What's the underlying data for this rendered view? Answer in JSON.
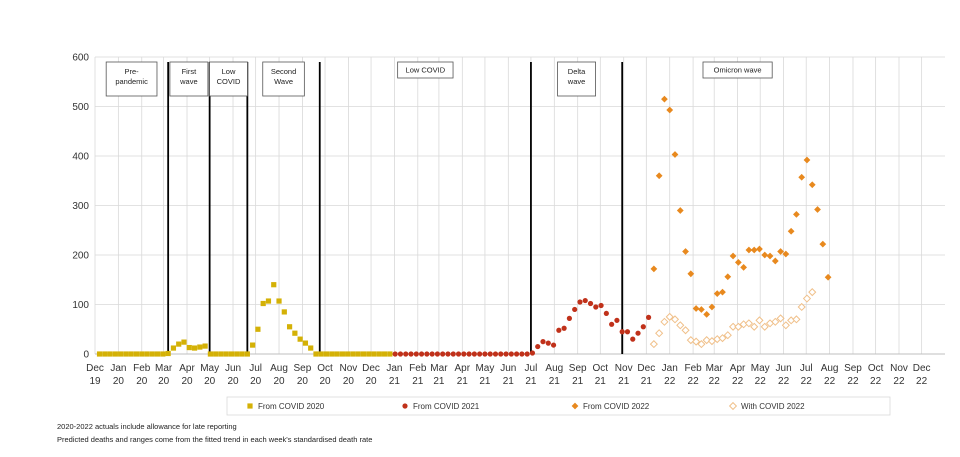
{
  "chart_data": {
    "type": "scatter",
    "title": "",
    "xlabel": "",
    "ylabel": "",
    "ylim": [
      0,
      600
    ],
    "yticks": [
      0,
      100,
      200,
      300,
      400,
      500,
      600
    ],
    "xlim": [
      "2019-12-01",
      "2023-01-01"
    ],
    "x_tick_labels": [
      [
        "Dec",
        "19"
      ],
      [
        "Jan",
        "20"
      ],
      [
        "Feb",
        "20"
      ],
      [
        "Mar",
        "20"
      ],
      [
        "Apr",
        "20"
      ],
      [
        "May",
        "20"
      ],
      [
        "Jun",
        "20"
      ],
      [
        "Jul",
        "20"
      ],
      [
        "Aug",
        "20"
      ],
      [
        "Sep",
        "20"
      ],
      [
        "Oct",
        "20"
      ],
      [
        "Nov",
        "20"
      ],
      [
        "Dec",
        "20"
      ],
      [
        "Jan",
        "21"
      ],
      [
        "Feb",
        "21"
      ],
      [
        "Mar",
        "21"
      ],
      [
        "Apr",
        "21"
      ],
      [
        "May",
        "21"
      ],
      [
        "Jun",
        "21"
      ],
      [
        "Jul",
        "21"
      ],
      [
        "Aug",
        "21"
      ],
      [
        "Sep",
        "21"
      ],
      [
        "Oct",
        "21"
      ],
      [
        "Nov",
        "21"
      ],
      [
        "Dec",
        "21"
      ],
      [
        "Jan",
        "22"
      ],
      [
        "Feb",
        "22"
      ],
      [
        "Mar",
        "22"
      ],
      [
        "Apr",
        "22"
      ],
      [
        "May",
        "22"
      ],
      [
        "Jun",
        "22"
      ],
      [
        "Jul",
        "22"
      ],
      [
        "Aug",
        "22"
      ],
      [
        "Sep",
        "22"
      ],
      [
        "Oct",
        "22"
      ],
      [
        "Nov",
        "22"
      ],
      [
        "Dec",
        "22"
      ]
    ],
    "grid": true,
    "legend_position": "bottom",
    "waves": [
      {
        "label": [
          "Pre-",
          "pandemic"
        ],
        "start": "2019-12-01",
        "end": "2020-03-07"
      },
      {
        "label": [
          "First",
          "wave"
        ],
        "start": "2020-03-07",
        "end": "2020-05-01"
      },
      {
        "label": [
          "Low",
          "COVID"
        ],
        "start": "2020-05-01",
        "end": "2020-06-20"
      },
      {
        "label": [
          "Second",
          "Wave"
        ],
        "start": "2020-06-20",
        "end": "2020-09-24"
      },
      {
        "label": [
          "Low COVID"
        ],
        "start": "2020-09-24",
        "end": "2021-07-01"
      },
      {
        "label": [
          "Delta",
          "wave"
        ],
        "start": "2021-07-01",
        "end": "2021-10-30"
      },
      {
        "label": [
          "Omicron wave"
        ],
        "start": "2021-10-30",
        "end": "2022-09-01"
      }
    ],
    "wave_boundaries": [
      "2020-03-07",
      "2020-05-01",
      "2020-06-20",
      "2020-09-24",
      "2021-07-01",
      "2021-10-30"
    ],
    "series": [
      {
        "name": "From COVID 2020",
        "marker": "square",
        "color": "#d4b106",
        "filled": true,
        "points": [
          [
            "2019-12-07",
            0
          ],
          [
            "2019-12-14",
            0
          ],
          [
            "2019-12-21",
            0
          ],
          [
            "2019-12-28",
            0
          ],
          [
            "2020-01-04",
            0
          ],
          [
            "2020-01-11",
            0
          ],
          [
            "2020-01-18",
            0
          ],
          [
            "2020-01-25",
            0
          ],
          [
            "2020-02-01",
            0
          ],
          [
            "2020-02-08",
            0
          ],
          [
            "2020-02-15",
            0
          ],
          [
            "2020-02-22",
            0
          ],
          [
            "2020-02-29",
            0
          ],
          [
            "2020-03-07",
            1
          ],
          [
            "2020-03-14",
            12
          ],
          [
            "2020-03-21",
            20
          ],
          [
            "2020-03-28",
            24
          ],
          [
            "2020-04-04",
            13
          ],
          [
            "2020-04-11",
            12
          ],
          [
            "2020-04-18",
            14
          ],
          [
            "2020-04-25",
            16
          ],
          [
            "2020-05-02",
            0
          ],
          [
            "2020-05-09",
            0
          ],
          [
            "2020-05-16",
            0
          ],
          [
            "2020-05-23",
            0
          ],
          [
            "2020-05-30",
            0
          ],
          [
            "2020-06-06",
            0
          ],
          [
            "2020-06-13",
            0
          ],
          [
            "2020-06-20",
            0
          ],
          [
            "2020-06-27",
            18
          ],
          [
            "2020-07-04",
            50
          ],
          [
            "2020-07-11",
            102
          ],
          [
            "2020-07-18",
            107
          ],
          [
            "2020-07-25",
            140
          ],
          [
            "2020-08-01",
            107
          ],
          [
            "2020-08-08",
            85
          ],
          [
            "2020-08-15",
            55
          ],
          [
            "2020-08-22",
            42
          ],
          [
            "2020-08-29",
            30
          ],
          [
            "2020-09-05",
            22
          ],
          [
            "2020-09-12",
            12
          ],
          [
            "2020-09-19",
            0
          ],
          [
            "2020-09-26",
            0
          ],
          [
            "2020-10-03",
            0
          ],
          [
            "2020-10-10",
            0
          ],
          [
            "2020-10-17",
            0
          ],
          [
            "2020-10-24",
            0
          ],
          [
            "2020-10-31",
            0
          ],
          [
            "2020-11-07",
            0
          ],
          [
            "2020-11-14",
            0
          ],
          [
            "2020-11-21",
            0
          ],
          [
            "2020-11-28",
            0
          ],
          [
            "2020-12-05",
            0
          ],
          [
            "2020-12-12",
            0
          ],
          [
            "2020-12-19",
            0
          ],
          [
            "2020-12-26",
            0
          ]
        ]
      },
      {
        "name": "From COVID 2021",
        "marker": "circle",
        "color": "#c0311a",
        "filled": true,
        "points": [
          [
            "2021-01-02",
            0
          ],
          [
            "2021-01-09",
            0
          ],
          [
            "2021-01-16",
            0
          ],
          [
            "2021-01-23",
            0
          ],
          [
            "2021-01-30",
            0
          ],
          [
            "2021-02-06",
            0
          ],
          [
            "2021-02-13",
            0
          ],
          [
            "2021-02-20",
            0
          ],
          [
            "2021-02-27",
            0
          ],
          [
            "2021-03-06",
            0
          ],
          [
            "2021-03-13",
            0
          ],
          [
            "2021-03-20",
            0
          ],
          [
            "2021-03-27",
            0
          ],
          [
            "2021-04-03",
            0
          ],
          [
            "2021-04-10",
            0
          ],
          [
            "2021-04-17",
            0
          ],
          [
            "2021-04-24",
            0
          ],
          [
            "2021-05-01",
            0
          ],
          [
            "2021-05-08",
            0
          ],
          [
            "2021-05-15",
            0
          ],
          [
            "2021-05-22",
            0
          ],
          [
            "2021-05-29",
            0
          ],
          [
            "2021-06-05",
            0
          ],
          [
            "2021-06-12",
            0
          ],
          [
            "2021-06-19",
            0
          ],
          [
            "2021-06-26",
            0
          ],
          [
            "2021-07-03",
            2
          ],
          [
            "2021-07-10",
            15
          ],
          [
            "2021-07-17",
            25
          ],
          [
            "2021-07-24",
            22
          ],
          [
            "2021-07-31",
            18
          ],
          [
            "2021-08-07",
            48
          ],
          [
            "2021-08-14",
            52
          ],
          [
            "2021-08-21",
            72
          ],
          [
            "2021-08-28",
            90
          ],
          [
            "2021-09-04",
            105
          ],
          [
            "2021-09-11",
            108
          ],
          [
            "2021-09-18",
            102
          ],
          [
            "2021-09-25",
            95
          ],
          [
            "2021-10-02",
            98
          ],
          [
            "2021-10-09",
            82
          ],
          [
            "2021-10-16",
            60
          ],
          [
            "2021-10-23",
            68
          ],
          [
            "2021-10-30",
            45
          ],
          [
            "2021-11-06",
            45
          ],
          [
            "2021-11-13",
            30
          ],
          [
            "2021-11-20",
            42
          ],
          [
            "2021-11-27",
            55
          ],
          [
            "2021-12-04",
            74
          ]
        ]
      },
      {
        "name": "From COVID 2022",
        "marker": "diamond",
        "color": "#e8891e",
        "filled": true,
        "points": [
          [
            "2021-12-11",
            172
          ],
          [
            "2021-12-18",
            360
          ],
          [
            "2021-12-25",
            515
          ],
          [
            "2022-01-01",
            493
          ],
          [
            "2022-01-08",
            403
          ],
          [
            "2022-01-15",
            290
          ],
          [
            "2022-01-22",
            207
          ],
          [
            "2022-01-29",
            162
          ],
          [
            "2022-02-05",
            92
          ],
          [
            "2022-02-12",
            90
          ],
          [
            "2022-02-19",
            80
          ],
          [
            "2022-02-26",
            95
          ],
          [
            "2022-03-05",
            122
          ],
          [
            "2022-03-12",
            125
          ],
          [
            "2022-03-19",
            156
          ],
          [
            "2022-03-26",
            198
          ],
          [
            "2022-04-02",
            185
          ],
          [
            "2022-04-09",
            175
          ],
          [
            "2022-04-16",
            210
          ],
          [
            "2022-04-23",
            210
          ],
          [
            "2022-04-30",
            212
          ],
          [
            "2022-05-07",
            200
          ],
          [
            "2022-05-14",
            198
          ],
          [
            "2022-05-21",
            188
          ],
          [
            "2022-05-28",
            207
          ],
          [
            "2022-06-04",
            202
          ],
          [
            "2022-06-11",
            248
          ],
          [
            "2022-06-18",
            282
          ],
          [
            "2022-06-25",
            357
          ],
          [
            "2022-07-02",
            392
          ],
          [
            "2022-07-09",
            342
          ],
          [
            "2022-07-16",
            292
          ],
          [
            "2022-07-23",
            222
          ],
          [
            "2022-07-30",
            155
          ]
        ]
      },
      {
        "name": "With COVID 2022",
        "marker": "diamond",
        "color": "#f0c08a",
        "filled": false,
        "points": [
          [
            "2021-12-11",
            20
          ],
          [
            "2021-12-18",
            42
          ],
          [
            "2021-12-25",
            65
          ],
          [
            "2022-01-01",
            75
          ],
          [
            "2022-01-08",
            70
          ],
          [
            "2022-01-15",
            58
          ],
          [
            "2022-01-22",
            48
          ],
          [
            "2022-01-29",
            28
          ],
          [
            "2022-02-05",
            25
          ],
          [
            "2022-02-12",
            20
          ],
          [
            "2022-02-19",
            28
          ],
          [
            "2022-02-26",
            26
          ],
          [
            "2022-03-05",
            30
          ],
          [
            "2022-03-12",
            32
          ],
          [
            "2022-03-19",
            38
          ],
          [
            "2022-03-26",
            55
          ],
          [
            "2022-04-02",
            55
          ],
          [
            "2022-04-09",
            60
          ],
          [
            "2022-04-16",
            62
          ],
          [
            "2022-04-23",
            55
          ],
          [
            "2022-04-30",
            68
          ],
          [
            "2022-05-07",
            55
          ],
          [
            "2022-05-14",
            62
          ],
          [
            "2022-05-21",
            65
          ],
          [
            "2022-05-28",
            72
          ],
          [
            "2022-06-04",
            58
          ],
          [
            "2022-06-11",
            68
          ],
          [
            "2022-06-18",
            70
          ],
          [
            "2022-06-25",
            95
          ],
          [
            "2022-07-02",
            112
          ],
          [
            "2022-07-09",
            125
          ]
        ]
      }
    ]
  },
  "notes": [
    "2020-2022  actuals include allowance for late reporting",
    "Predicted deaths and ranges come from the fitted trend in each week's standardised death rate"
  ]
}
